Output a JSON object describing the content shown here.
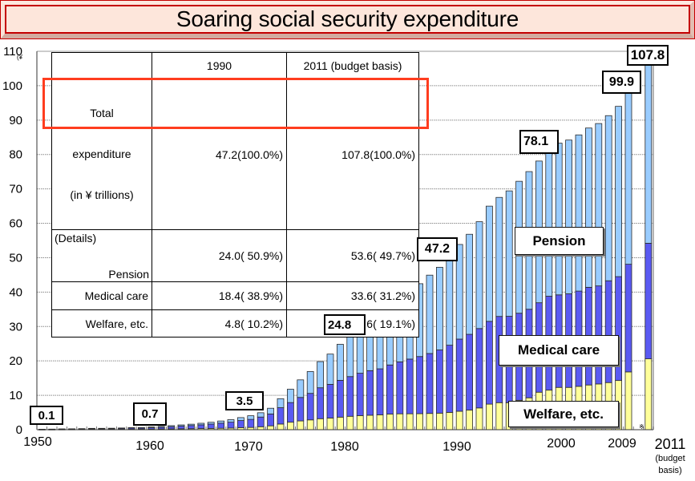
{
  "title": "Soaring social security expenditure",
  "table": {
    "headers": [
      "",
      "1990",
      "2011 (budget basis)"
    ],
    "rows": [
      {
        "label_lines": [
          "Total",
          "expenditure",
          "(in ¥ trillions)"
        ],
        "values": [
          "47.2(100.0%)",
          "107.8(100.0%)"
        ]
      },
      {
        "details_label": "(Details)",
        "label": "Pension",
        "values": [
          "24.0( 50.9%)",
          "53.6( 49.7%)"
        ]
      },
      {
        "label": "Medical care",
        "values": [
          "18.4( 38.9%)",
          "33.6( 31.2%)"
        ]
      },
      {
        "label": "Welfare, etc.",
        "values": [
          "4.8( 10.2%)",
          "20.6( 19.1%)"
        ]
      }
    ]
  },
  "chart_data": {
    "type": "bar",
    "stacked": true,
    "title": "Soaring social security expenditure",
    "xlabel": "",
    "ylabel": "(¥ trillions)",
    "y_unit_label": "(¥",
    "ylim": [
      0,
      110
    ],
    "y_ticks": [
      0,
      10,
      20,
      30,
      40,
      50,
      60,
      70,
      80,
      90,
      100,
      110
    ],
    "grid": true,
    "x_tick_labels": [
      "1950",
      "1960",
      "1970",
      "1980",
      "1990",
      "2000",
      "2009",
      "2011"
    ],
    "x_note_lines": [
      "(budget",
      "basis)"
    ],
    "footnote_mark": "※",
    "years": [
      1950,
      1951,
      1952,
      1953,
      1954,
      1955,
      1956,
      1957,
      1958,
      1959,
      1960,
      1961,
      1962,
      1963,
      1964,
      1965,
      1966,
      1967,
      1968,
      1969,
      1970,
      1971,
      1972,
      1973,
      1974,
      1975,
      1976,
      1977,
      1978,
      1979,
      1980,
      1981,
      1982,
      1983,
      1984,
      1985,
      1986,
      1987,
      1988,
      1989,
      1990,
      1991,
      1992,
      1993,
      1994,
      1995,
      1996,
      1997,
      1998,
      1999,
      2000,
      2001,
      2002,
      2003,
      2004,
      2005,
      2006,
      2007,
      2008,
      2009,
      2011
    ],
    "series": [
      {
        "name": "Welfare, etc.",
        "label": "Welfare, etc.",
        "color": "#ffff99",
        "values": [
          0.06,
          0.07,
          0.09,
          0.1,
          0.11,
          0.14,
          0.13,
          0.13,
          0.13,
          0.13,
          0.14,
          0.17,
          0.2,
          0.23,
          0.26,
          0.29,
          0.33,
          0.37,
          0.42,
          0.48,
          0.6,
          0.66,
          0.86,
          1.12,
          1.65,
          2.18,
          2.55,
          2.85,
          3.2,
          3.39,
          3.65,
          3.9,
          4.1,
          4.21,
          4.32,
          4.53,
          4.62,
          4.63,
          4.66,
          4.73,
          4.81,
          5.03,
          5.36,
          5.7,
          6.33,
          7.43,
          7.86,
          7.84,
          8.55,
          9.27,
          10.9,
          11.5,
          12.3,
          12.3,
          12.6,
          13.0,
          13.3,
          13.7,
          14.3,
          16.8,
          20.6
        ]
      },
      {
        "name": "Medical care",
        "label": "Medical care",
        "color": "#5a5af2",
        "values": [
          0.06,
          0.08,
          0.11,
          0.14,
          0.16,
          0.21,
          0.22,
          0.24,
          0.28,
          0.33,
          0.29,
          0.39,
          0.5,
          0.65,
          0.79,
          0.93,
          1.09,
          1.27,
          1.49,
          1.71,
          2.06,
          2.34,
          2.82,
          3.46,
          4.75,
          5.71,
          6.83,
          7.71,
          8.99,
          9.79,
          10.7,
          11.54,
          12.31,
          12.96,
          13.38,
          14.29,
          15.11,
          15.9,
          16.61,
          17.42,
          18.38,
          19.53,
          20.98,
          22.03,
          23.08,
          24.07,
          25.07,
          25.13,
          25.31,
          25.75,
          26.0,
          27.3,
          26.9,
          27.2,
          27.7,
          28.4,
          28.5,
          29.6,
          30.2,
          31.3,
          33.6
        ]
      },
      {
        "name": "Pension",
        "label": "Pension",
        "color": "#99ccff",
        "values": [
          0.01,
          0.01,
          0.01,
          0.02,
          0.03,
          0.04,
          0.05,
          0.06,
          0.09,
          0.14,
          0.22,
          0.23,
          0.26,
          0.3,
          0.34,
          0.38,
          0.45,
          0.52,
          0.62,
          0.73,
          0.86,
          1.06,
          1.25,
          1.66,
          2.62,
          3.88,
          5.11,
          6.35,
          7.6,
          8.8,
          10.48,
          12.14,
          13.68,
          14.77,
          15.66,
          16.86,
          18.86,
          20.21,
          21.17,
          22.78,
          24.03,
          25.46,
          27.51,
          29.08,
          31.06,
          33.49,
          34.6,
          36.45,
          38.35,
          40.01,
          41.2,
          42.6,
          44.1,
          44.7,
          45.4,
          46.3,
          47.2,
          48.0,
          49.5,
          51.8,
          53.6
        ]
      }
    ],
    "annotations": [
      {
        "year": 1950,
        "text": "0.1"
      },
      {
        "year": 1960,
        "text": "0.7"
      },
      {
        "year": 1970,
        "text": "3.5"
      },
      {
        "year": 1980,
        "text": "24.8"
      },
      {
        "year": 1990,
        "text": "47.2"
      },
      {
        "year": 2000,
        "text": "78.1"
      },
      {
        "year": 2009,
        "text": "99.9"
      },
      {
        "year": 2011,
        "text": "107.8"
      }
    ],
    "legend": "inline-labels"
  }
}
